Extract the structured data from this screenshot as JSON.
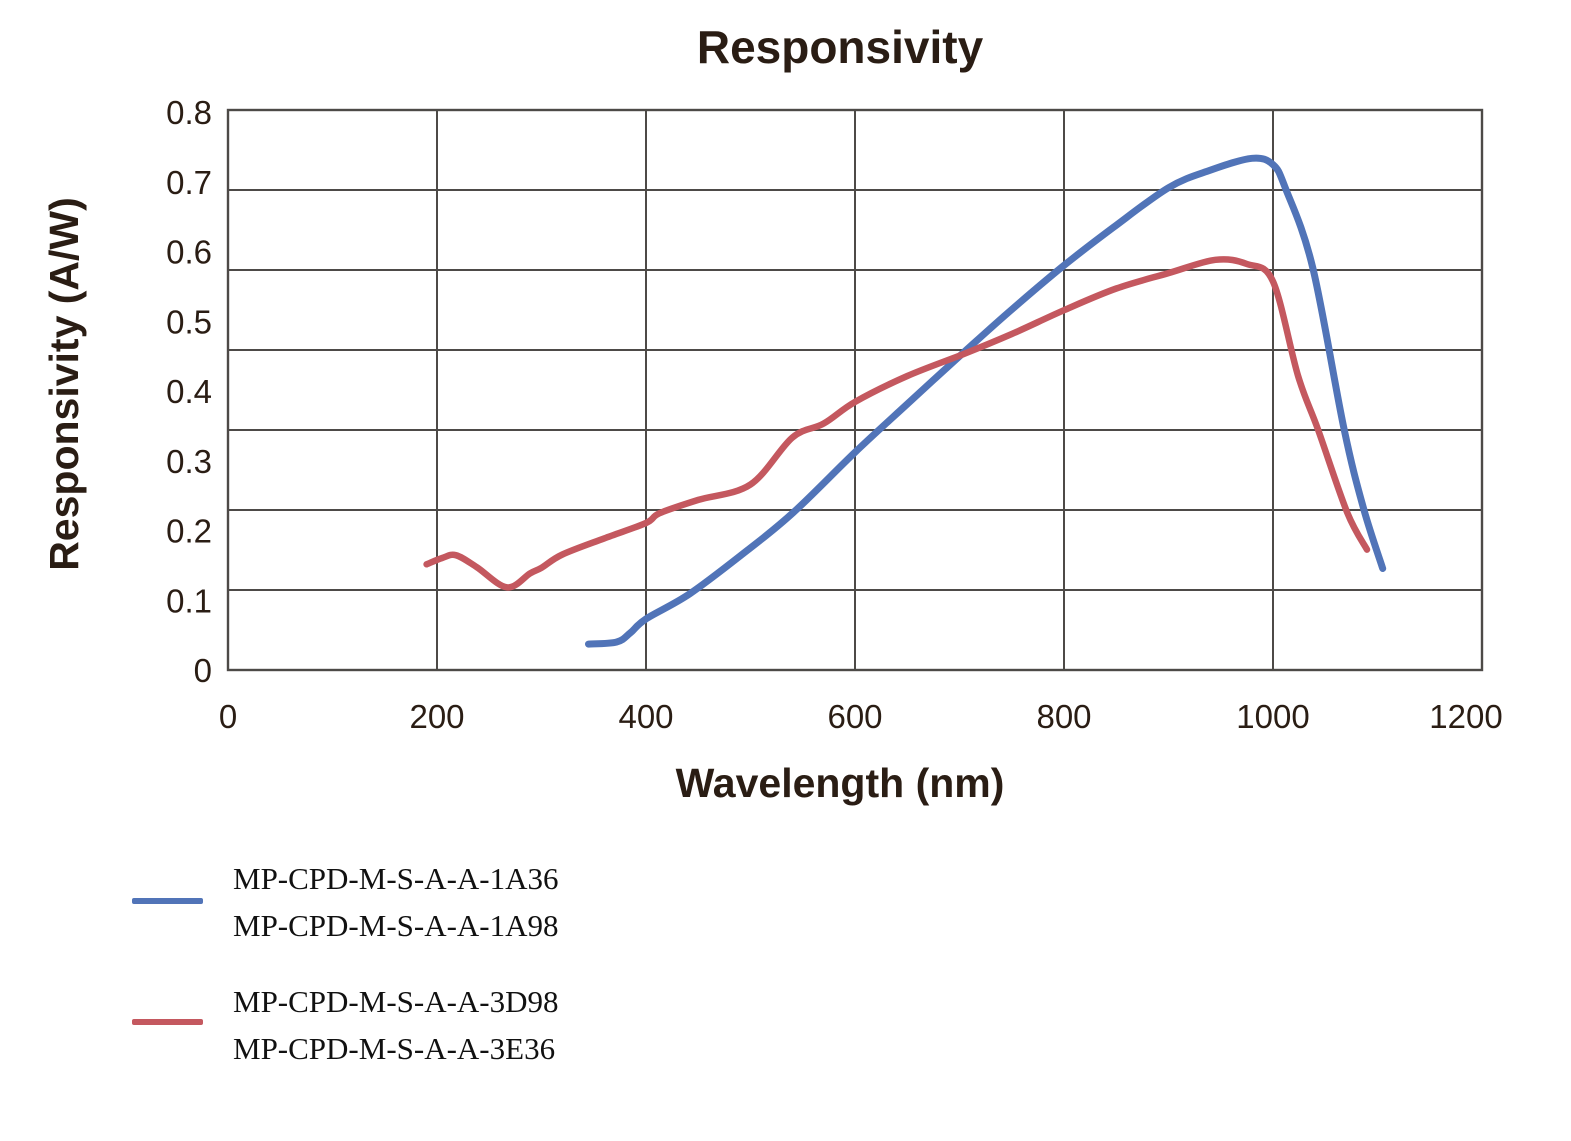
{
  "chart": {
    "title": "Responsivity",
    "x_axis_title": "Wavelength (nm)",
    "y_axis_title": "Responsivity (A/W)"
  },
  "axes": {
    "x_tick_labels": [
      "0",
      "200",
      "400",
      "600",
      "800",
      "1000",
      "1200"
    ],
    "y_tick_labels_top_to_bottom": [
      "0.8",
      "0.7",
      "0.6",
      "0.5",
      "0.4",
      "0.3",
      "0.2",
      "0.1",
      "0"
    ]
  },
  "colors": {
    "ink": "#2a1d14",
    "grid": "#4d4a47",
    "series_blue": "#5174b8",
    "series_red": "#c4585f"
  },
  "legend": {
    "entries": [
      {
        "series": "blue",
        "color": "#5174b8",
        "lines": [
          "MP-CPD-M-S-A-A-1A36",
          "MP-CPD-M-S-A-A-1A98"
        ]
      },
      {
        "series": "red",
        "color": "#c4585f",
        "lines": [
          "MP-CPD-M-S-A-A-3D98",
          "MP-CPD-M-S-A-A-3E36"
        ]
      }
    ]
  },
  "chart_data": {
    "type": "line",
    "title": "Responsivity",
    "xlabel": "Wavelength (nm)",
    "ylabel": "Responsivity (A/W)",
    "xlim": [
      0,
      1200
    ],
    "ylim": [
      0,
      0.8
    ],
    "x_ticks": [
      0,
      200,
      400,
      600,
      800,
      1000,
      1200
    ],
    "y_ticks": [
      0,
      0.1,
      0.2,
      0.3,
      0.4,
      0.5,
      0.6,
      0.7,
      0.8
    ],
    "grid": "on",
    "legend_position": "below-chart-left",
    "series": [
      {
        "name": "MP-CPD-M-S-A-A-1A36 / MP-CPD-M-S-A-A-1A98",
        "color": "#5174b8",
        "points": [
          [
            345,
            0.037
          ],
          [
            372,
            0.04
          ],
          [
            385,
            0.053
          ],
          [
            400,
            0.073
          ],
          [
            442,
            0.109
          ],
          [
            497,
            0.171
          ],
          [
            541,
            0.225
          ],
          [
            600,
            0.311
          ],
          [
            650,
            0.38
          ],
          [
            705,
            0.455
          ],
          [
            750,
            0.515
          ],
          [
            800,
            0.578
          ],
          [
            847,
            0.632
          ],
          [
            900,
            0.689
          ],
          [
            940,
            0.714
          ],
          [
            980,
            0.731
          ],
          [
            1000,
            0.722
          ],
          [
            1012,
            0.688
          ],
          [
            1038,
            0.575
          ],
          [
            1068,
            0.344
          ],
          [
            1087,
            0.229
          ],
          [
            1105,
            0.145
          ]
        ]
      },
      {
        "name": "MP-CPD-M-S-A-A-3D98 / MP-CPD-M-S-A-A-3E36",
        "color": "#c4585f",
        "points": [
          [
            190,
            0.151
          ],
          [
            205,
            0.16
          ],
          [
            218,
            0.164
          ],
          [
            238,
            0.147
          ],
          [
            267,
            0.118
          ],
          [
            289,
            0.138
          ],
          [
            300,
            0.146
          ],
          [
            320,
            0.165
          ],
          [
            360,
            0.188
          ],
          [
            400,
            0.21
          ],
          [
            413,
            0.224
          ],
          [
            450,
            0.243
          ],
          [
            500,
            0.265
          ],
          [
            540,
            0.332
          ],
          [
            570,
            0.352
          ],
          [
            600,
            0.383
          ],
          [
            650,
            0.42
          ],
          [
            705,
            0.452
          ],
          [
            750,
            0.48
          ],
          [
            800,
            0.514
          ],
          [
            850,
            0.545
          ],
          [
            900,
            0.567
          ],
          [
            945,
            0.586
          ],
          [
            975,
            0.58
          ],
          [
            1000,
            0.555
          ],
          [
            1024,
            0.42
          ],
          [
            1043,
            0.344
          ],
          [
            1071,
            0.225
          ],
          [
            1090,
            0.172
          ]
        ]
      }
    ]
  }
}
